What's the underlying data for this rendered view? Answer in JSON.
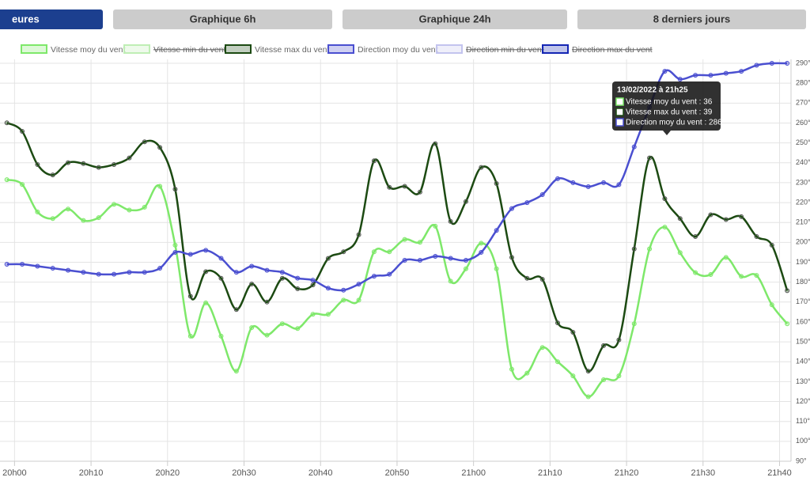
{
  "tabs": [
    "eures",
    "Graphique 6h",
    "Graphique 24h",
    "8 derniers jours"
  ],
  "tooltip": {
    "title": "13/02/2022 à 21h25",
    "lines": [
      "Vitesse moy du vent : 36",
      "Vitesse max du vent : 39",
      "Direction moy du vent : 286"
    ]
  },
  "chart_data": {
    "type": "line",
    "x": [
      -1,
      1,
      3,
      5,
      7,
      9,
      11,
      13,
      15,
      17,
      19,
      21,
      23,
      25,
      27,
      29,
      31,
      33,
      35,
      37,
      39,
      41,
      43,
      45,
      47,
      49,
      51,
      53,
      55,
      57,
      59,
      61,
      63,
      65,
      67,
      69,
      71,
      73,
      75,
      77,
      79,
      81,
      83,
      85,
      87,
      89,
      91,
      93,
      95,
      97,
      99,
      101
    ],
    "xlim": [
      -1.9,
      101.5
    ],
    "xticks": [
      {
        "value": 0,
        "label": "20h00"
      },
      {
        "value": 10,
        "label": "20h10"
      },
      {
        "value": 20,
        "label": "20h20"
      },
      {
        "value": 30,
        "label": "20h30"
      },
      {
        "value": 40,
        "label": "20h40"
      },
      {
        "value": 50,
        "label": "20h50"
      },
      {
        "value": 60,
        "label": "21h00"
      },
      {
        "value": 70,
        "label": "21h10"
      },
      {
        "value": 80,
        "label": "21h20"
      },
      {
        "value": 90,
        "label": "21h30"
      },
      {
        "value": 100,
        "label": "21h40"
      }
    ],
    "ylim": [
      11.3,
      53.7
    ],
    "y2lim": [
      90,
      292
    ],
    "y2ticks": [
      {
        "value": 90,
        "label": "90°"
      },
      {
        "value": 100,
        "label": "100°"
      },
      {
        "value": 110,
        "label": "110°"
      },
      {
        "value": 120,
        "label": "120°"
      },
      {
        "value": 130,
        "label": "130°"
      },
      {
        "value": 140,
        "label": "140°"
      },
      {
        "value": 150,
        "label": "150°"
      },
      {
        "value": 160,
        "label": "160°"
      },
      {
        "value": 170,
        "label": "170°"
      },
      {
        "value": 180,
        "label": "180°"
      },
      {
        "value": 190,
        "label": "190°"
      },
      {
        "value": 200,
        "label": "200°"
      },
      {
        "value": 210,
        "label": "210°"
      },
      {
        "value": 220,
        "label": "220°"
      },
      {
        "value": 230,
        "label": "230°"
      },
      {
        "value": 240,
        "label": "240°"
      },
      {
        "value": 250,
        "label": "250°"
      },
      {
        "value": 260,
        "label": "260°"
      },
      {
        "value": 270,
        "label": "270°"
      },
      {
        "value": 280,
        "label": "280°"
      },
      {
        "value": 290,
        "label": "290°"
      }
    ],
    "grid": true,
    "series": [
      {
        "name": "Vitesse moy du vent",
        "color": "#7ee86a",
        "values": [
          41.0,
          40.5,
          37.6,
          36.9,
          37.9,
          36.7,
          37.0,
          38.4,
          37.8,
          38.1,
          40.3,
          34.1,
          24.5,
          28.0,
          24.5,
          20.8,
          25.4,
          24.6,
          25.8,
          25.3,
          26.8,
          26.8,
          28.3,
          28.3,
          33.4,
          33.4,
          34.7,
          34.4,
          36.1,
          30.3,
          31.6,
          34.3,
          31.6,
          21.0,
          20.6,
          23.3,
          21.8,
          20.3,
          18.1,
          19.9,
          20.3,
          25.8,
          33.7,
          36.0,
          33.3,
          31.2,
          31.0,
          32.8,
          30.8,
          30.9,
          27.8,
          25.8
        ]
      },
      {
        "name": "Vitesse max du vent",
        "color": "#1c4a12",
        "values": [
          47.0,
          46.1,
          42.6,
          41.5,
          42.8,
          42.7,
          42.3,
          42.6,
          43.3,
          45.0,
          44.4,
          40.0,
          28.7,
          31.3,
          30.6,
          27.3,
          30.0,
          28.1,
          30.6,
          29.5,
          29.9,
          32.7,
          33.4,
          35.2,
          43.0,
          40.2,
          40.3,
          39.7,
          44.8,
          36.6,
          38.7,
          42.3,
          40.6,
          32.8,
          30.6,
          30.5,
          25.9,
          24.9,
          20.8,
          23.5,
          24.1,
          33.7,
          43.3,
          39.0,
          36.9,
          35.0,
          37.3,
          36.8,
          37.1,
          35.0,
          34.1,
          29.3
        ]
      },
      {
        "name": "Direction moy du vent",
        "color": "#4a4fd0",
        "axis": "y2",
        "values": [
          189,
          189,
          188,
          187,
          186,
          185,
          184,
          184,
          185,
          185,
          187,
          195,
          194,
          196,
          192,
          185,
          188,
          186,
          185,
          182,
          181,
          177,
          176,
          179,
          183,
          184,
          191,
          191,
          193,
          192,
          191,
          195,
          206,
          217,
          220,
          224,
          232,
          230,
          228,
          230,
          229,
          248,
          268,
          286,
          282,
          284,
          284,
          285,
          286,
          289,
          290,
          290
        ]
      }
    ],
    "hidden_series": [
      {
        "name": "Vitesse min du vent",
        "color": "#bfeeb5"
      },
      {
        "name": "Direction min du vent",
        "color": "#c3c4ee"
      },
      {
        "name": "Direction max du vent",
        "color": "#1426b4"
      }
    ]
  }
}
